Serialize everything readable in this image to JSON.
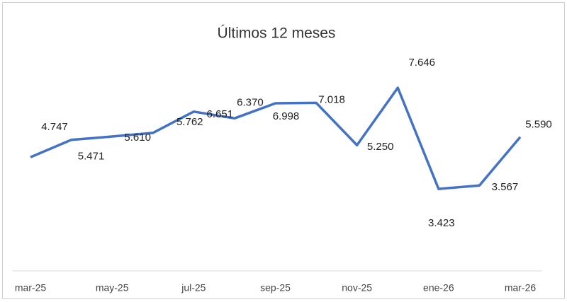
{
  "chart_data": {
    "type": "line",
    "title": "Últimos 12 meses",
    "categories": [
      "mar-25",
      null,
      "may-25",
      null,
      "jul-25",
      null,
      "sep-25",
      null,
      "nov-25",
      null,
      "ene-26",
      null,
      "mar-26"
    ],
    "series": [
      {
        "color": "#4472c4",
        "values": [
          4747,
          5471,
          5610,
          5762,
          6651,
          6370,
          6998,
          7018,
          5250,
          7646,
          3423,
          3567,
          5590
        ],
        "value_labels": [
          "4.747",
          "5.471",
          "5.610",
          "5.762",
          "6.651",
          "6.370",
          "6.998",
          "7.018",
          "5.250",
          "7.646",
          "3.423",
          "3.567",
          "5.590"
        ]
      }
    ]
  }
}
